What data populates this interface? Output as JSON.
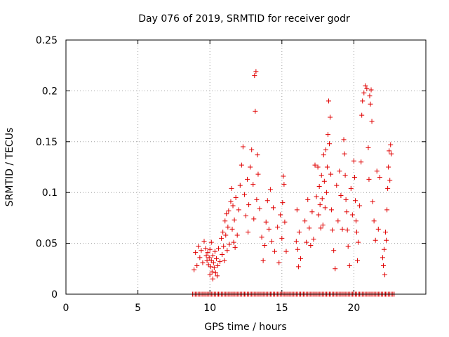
{
  "chart_data": {
    "type": "scatter",
    "title": "Day 076 of 2019, SRMTID for receiver godr",
    "xlabel": "GPS time / hours",
    "ylabel": "SRMTID / TECUs",
    "xlim": [
      0,
      25
    ],
    "ylim": [
      0,
      0.25
    ],
    "x_ticks": [
      0,
      5,
      10,
      15,
      20
    ],
    "x_tick_labels": [
      "0",
      "5",
      "10",
      "15",
      "20"
    ],
    "y_ticks": [
      0,
      0.05,
      0.1,
      0.15,
      0.2,
      0.25
    ],
    "y_tick_labels": [
      "0",
      "0.05",
      "0.1",
      "0.15",
      "0.2",
      "0.25"
    ],
    "grid": true,
    "marker": "+",
    "color": "#e00000",
    "series": [
      {
        "name": "SRMTID",
        "points": [
          [
            8.9,
            0.024
          ],
          [
            9.0,
            0.041
          ],
          [
            9.1,
            0.028
          ],
          [
            9.2,
            0.047
          ],
          [
            9.3,
            0.036
          ],
          [
            9.4,
            0.043
          ],
          [
            9.5,
            0.031
          ],
          [
            9.6,
            0.052
          ],
          [
            9.7,
            0.045
          ],
          [
            9.75,
            0.038
          ],
          [
            9.8,
            0.033
          ],
          [
            9.85,
            0.041
          ],
          [
            9.9,
            0.029
          ],
          [
            9.95,
            0.036
          ],
          [
            10.0,
            0.019
          ],
          [
            10.0,
            0.044
          ],
          [
            10.05,
            0.027
          ],
          [
            10.1,
            0.033
          ],
          [
            10.1,
            0.051
          ],
          [
            10.15,
            0.022
          ],
          [
            10.2,
            0.038
          ],
          [
            10.2,
            0.015
          ],
          [
            10.25,
            0.031
          ],
          [
            10.3,
            0.026
          ],
          [
            10.35,
            0.042
          ],
          [
            10.4,
            0.021
          ],
          [
            10.45,
            0.035
          ],
          [
            10.5,
            0.018
          ],
          [
            10.55,
            0.028
          ],
          [
            10.6,
            0.045
          ],
          [
            10.7,
            0.032
          ],
          [
            10.8,
            0.055
          ],
          [
            10.85,
            0.039
          ],
          [
            10.9,
            0.061
          ],
          [
            10.95,
            0.047
          ],
          [
            11.0,
            0.033
          ],
          [
            11.05,
            0.072
          ],
          [
            11.1,
            0.058
          ],
          [
            11.15,
            0.079
          ],
          [
            11.2,
            0.043
          ],
          [
            11.25,
            0.066
          ],
          [
            11.3,
            0.082
          ],
          [
            11.35,
            0.049
          ],
          [
            11.45,
            0.091
          ],
          [
            11.5,
            0.104
          ],
          [
            11.55,
            0.064
          ],
          [
            11.6,
            0.087
          ],
          [
            11.65,
            0.051
          ],
          [
            11.7,
            0.073
          ],
          [
            11.75,
            0.046
          ],
          [
            11.8,
            0.095
          ],
          [
            11.9,
            0.058
          ],
          [
            12.0,
            0.083
          ],
          [
            12.1,
            0.107
          ],
          [
            12.2,
            0.127
          ],
          [
            12.3,
            0.145
          ],
          [
            12.4,
            0.098
          ],
          [
            12.5,
            0.077
          ],
          [
            12.6,
            0.113
          ],
          [
            12.65,
            0.061
          ],
          [
            12.7,
            0.088
          ],
          [
            12.8,
            0.125
          ],
          [
            12.9,
            0.142
          ],
          [
            13.0,
            0.108
          ],
          [
            13.05,
            0.074
          ],
          [
            13.1,
            0.215
          ],
          [
            13.15,
            0.18
          ],
          [
            13.2,
            0.219
          ],
          [
            13.25,
            0.093
          ],
          [
            13.3,
            0.137
          ],
          [
            13.35,
            0.118
          ],
          [
            13.45,
            0.084
          ],
          [
            13.6,
            0.056
          ],
          [
            13.7,
            0.033
          ],
          [
            13.8,
            0.048
          ],
          [
            13.9,
            0.071
          ],
          [
            14.0,
            0.092
          ],
          [
            14.1,
            0.064
          ],
          [
            14.2,
            0.103
          ],
          [
            14.3,
            0.052
          ],
          [
            14.4,
            0.085
          ],
          [
            14.5,
            0.042
          ],
          [
            14.7,
            0.066
          ],
          [
            14.8,
            0.031
          ],
          [
            14.9,
            0.078
          ],
          [
            15.0,
            0.055
          ],
          [
            15.05,
            0.09
          ],
          [
            15.1,
            0.116
          ],
          [
            15.15,
            0.108
          ],
          [
            15.2,
            0.071
          ],
          [
            15.3,
            0.042
          ],
          [
            16.0,
            0.052
          ],
          [
            16.05,
            0.083
          ],
          [
            16.1,
            0.044
          ],
          [
            16.15,
            0.027
          ],
          [
            16.2,
            0.061
          ],
          [
            16.3,
            0.035
          ],
          [
            16.6,
            0.072
          ],
          [
            16.7,
            0.051
          ],
          [
            16.8,
            0.093
          ],
          [
            16.9,
            0.065
          ],
          [
            17.0,
            0.048
          ],
          [
            17.1,
            0.081
          ],
          [
            17.2,
            0.054
          ],
          [
            17.3,
            0.127
          ],
          [
            17.4,
            0.096
          ],
          [
            17.5,
            0.125
          ],
          [
            17.55,
            0.078
          ],
          [
            17.6,
            0.106
          ],
          [
            17.65,
            0.088
          ],
          [
            17.7,
            0.065
          ],
          [
            17.75,
            0.117
          ],
          [
            17.8,
            0.094
          ],
          [
            17.85,
            0.068
          ],
          [
            17.9,
            0.137
          ],
          [
            17.95,
            0.111
          ],
          [
            18.0,
            0.085
          ],
          [
            18.05,
            0.142
          ],
          [
            18.1,
            0.1
          ],
          [
            18.15,
            0.125
          ],
          [
            18.2,
            0.157
          ],
          [
            18.25,
            0.19
          ],
          [
            18.3,
            0.148
          ],
          [
            18.35,
            0.174
          ],
          [
            18.4,
            0.118
          ],
          [
            18.45,
            0.083
          ],
          [
            18.5,
            0.063
          ],
          [
            18.6,
            0.043
          ],
          [
            18.7,
            0.025
          ],
          [
            18.8,
            0.107
          ],
          [
            18.9,
            0.072
          ],
          [
            19.0,
            0.121
          ],
          [
            19.1,
            0.097
          ],
          [
            19.2,
            0.064
          ],
          [
            19.3,
            0.152
          ],
          [
            19.35,
            0.138
          ],
          [
            19.4,
            0.117
          ],
          [
            19.45,
            0.093
          ],
          [
            19.5,
            0.081
          ],
          [
            19.55,
            0.063
          ],
          [
            19.6,
            0.047
          ],
          [
            19.7,
            0.028
          ],
          [
            19.8,
            0.104
          ],
          [
            19.9,
            0.078
          ],
          [
            20.0,
            0.131
          ],
          [
            20.05,
            0.115
          ],
          [
            20.1,
            0.092
          ],
          [
            20.15,
            0.072
          ],
          [
            20.2,
            0.061
          ],
          [
            20.25,
            0.033
          ],
          [
            20.3,
            0.051
          ],
          [
            20.4,
            0.087
          ],
          [
            20.5,
            0.13
          ],
          [
            20.55,
            0.176
          ],
          [
            20.6,
            0.19
          ],
          [
            20.7,
            0.198
          ],
          [
            20.8,
            0.205
          ],
          [
            20.9,
            0.202
          ],
          [
            21.0,
            0.144
          ],
          [
            21.05,
            0.113
          ],
          [
            21.1,
            0.195
          ],
          [
            21.15,
            0.187
          ],
          [
            21.2,
            0.201
          ],
          [
            21.25,
            0.17
          ],
          [
            21.3,
            0.091
          ],
          [
            21.4,
            0.072
          ],
          [
            21.5,
            0.053
          ],
          [
            21.6,
            0.121
          ],
          [
            21.7,
            0.064
          ],
          [
            21.8,
            0.115
          ],
          [
            22.0,
            0.036
          ],
          [
            22.05,
            0.028
          ],
          [
            22.1,
            0.044
          ],
          [
            22.15,
            0.019
          ],
          [
            22.2,
            0.061
          ],
          [
            22.25,
            0.053
          ],
          [
            22.3,
            0.083
          ],
          [
            22.35,
            0.104
          ],
          [
            22.4,
            0.125
          ],
          [
            22.45,
            0.141
          ],
          [
            22.5,
            0.112
          ],
          [
            22.55,
            0.147
          ],
          [
            22.6,
            0.138
          ]
        ]
      }
    ],
    "zero_band": {
      "x_from": 8.8,
      "x_to": 22.8,
      "y": 0
    }
  }
}
